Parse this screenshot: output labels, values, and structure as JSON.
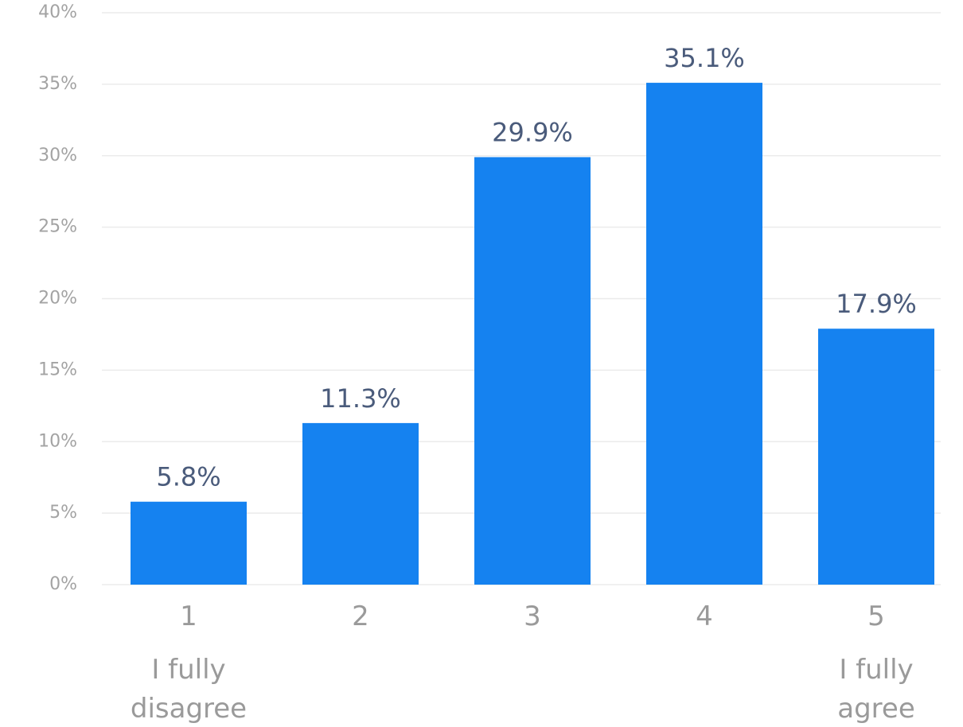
{
  "chart_data": {
    "type": "bar",
    "title": "",
    "xlabel": "",
    "ylabel": "",
    "categories": [
      "1",
      "2",
      "3",
      "4",
      "5"
    ],
    "category_sublabels": [
      [
        "I fully",
        "disagree"
      ],
      [],
      [],
      [],
      [
        "I fully",
        "agree"
      ]
    ],
    "values": [
      5.8,
      11.3,
      29.9,
      35.1,
      17.9
    ],
    "value_labels": [
      "5.8%",
      "11.3%",
      "29.9%",
      "35.1%",
      "17.9%"
    ],
    "ylim": [
      0,
      40
    ],
    "yticks": [
      0,
      5,
      10,
      15,
      20,
      25,
      30,
      35,
      40
    ],
    "ytick_labels": [
      "0%",
      "5%",
      "10%",
      "15%",
      "20%",
      "25%",
      "30%",
      "35%",
      "40%"
    ],
    "grid": true,
    "legend": "none",
    "colors": {
      "bar": "#1582f0",
      "grid": "#ebebeb",
      "tick_text": "#a3a3a3",
      "category_text": "#9a9a9a",
      "value_text": "#4a5b7b"
    }
  }
}
